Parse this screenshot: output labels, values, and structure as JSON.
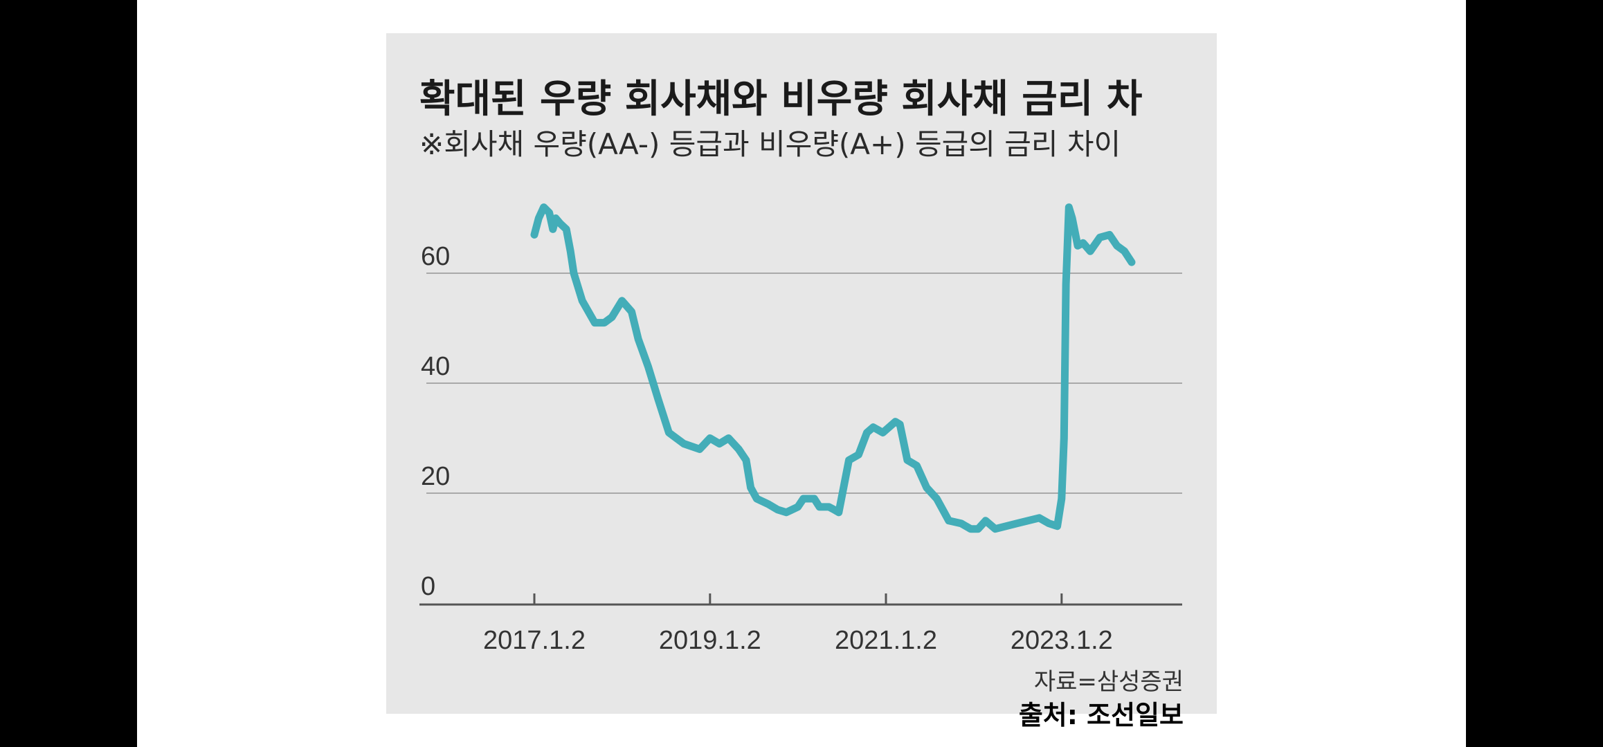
{
  "chart_data": {
    "type": "line",
    "title": "확대된 우량 회사채와 비우량 회사채 금리 차",
    "subtitle": "※회사채 우량(AA-) 등급과 비우량(A+) 등급의 금리 차이",
    "xlabel": "",
    "ylabel": "",
    "ylim": [
      0,
      80
    ],
    "yticks": [
      0,
      20,
      40,
      60
    ],
    "xticks": [
      "2017.1.2",
      "2019.1.2",
      "2021.1.2",
      "2023.1.2"
    ],
    "grid": true,
    "colors": {
      "line": "#43adb8",
      "grid": "#a9a9a9",
      "axis": "#555555",
      "background": "#e7e7e7"
    },
    "series": [
      {
        "x": [
          "2017-01-02",
          "2017-01-20",
          "2017-02-10",
          "2017-03-05",
          "2017-03-20",
          "2017-04-01",
          "2017-04-20",
          "2017-05-15",
          "2017-06-01",
          "2017-06-15",
          "2017-07-20",
          "2017-09-10",
          "2017-10-20",
          "2017-11-20",
          "2018-01-01",
          "2018-02-10",
          "2018-03-10",
          "2018-04-20",
          "2018-06-01",
          "2018-07-15",
          "2018-09-15",
          "2018-11-20",
          "2019-01-02",
          "2019-02-10",
          "2019-03-20",
          "2019-05-01",
          "2019-06-01",
          "2019-06-20",
          "2019-07-15",
          "2019-09-01",
          "2019-10-10",
          "2019-11-15",
          "2020-01-02",
          "2020-01-25",
          "2020-03-10",
          "2020-04-01",
          "2020-04-20",
          "2020-05-10",
          "2020-06-01",
          "2020-06-20",
          "2020-08-01",
          "2020-09-10",
          "2020-10-15",
          "2020-11-10",
          "2020-12-20",
          "2021-01-15",
          "2021-02-10",
          "2021-03-01",
          "2021-04-01",
          "2021-05-10",
          "2021-06-20",
          "2021-08-01",
          "2021-09-20",
          "2021-11-10",
          "2021-12-20",
          "2022-01-20",
          "2022-02-20",
          "2022-04-01",
          "2022-07-01",
          "2022-10-01",
          "2022-11-10",
          "2022-12-15",
          "2023-01-02",
          "2023-01-12",
          "2023-01-20",
          "2023-02-01",
          "2023-02-15",
          "2023-03-10",
          "2023-04-01",
          "2023-05-01",
          "2023-06-10",
          "2023-07-20",
          "2023-08-20",
          "2023-09-20",
          "2023-10-20"
        ],
        "values": [
          67,
          70,
          72,
          71,
          68,
          70,
          69,
          68,
          64,
          60,
          55,
          51,
          51,
          52,
          55,
          53,
          48,
          43,
          37,
          31,
          29,
          28,
          30,
          29,
          30,
          28,
          26,
          21,
          19,
          18,
          17,
          16.5,
          17.5,
          19,
          19,
          17.5,
          17.5,
          17.5,
          17,
          16.5,
          26,
          27,
          31,
          32,
          31,
          32,
          33,
          32.5,
          26,
          25,
          21,
          19,
          15,
          14.5,
          13.5,
          13.5,
          15,
          13.5,
          14.5,
          15.5,
          14.5,
          14,
          19,
          30,
          58,
          72,
          70,
          65,
          65.5,
          64,
          66.5,
          67,
          65,
          64,
          62
        ]
      }
    ]
  },
  "source": "자료=삼성증권",
  "credit": "출처: 조선일보"
}
